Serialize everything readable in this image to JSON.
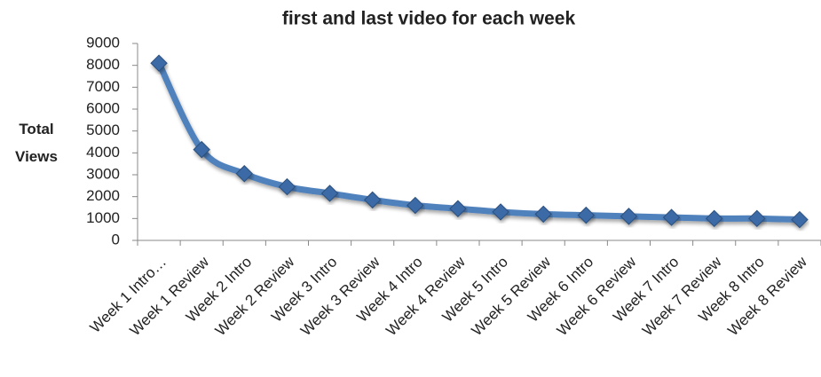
{
  "chart_data": {
    "type": "line",
    "title": "first and last video for each week",
    "y_label": "Total Views",
    "categories": [
      "Week 1 Intro…",
      "Week 1 Review",
      "Week 2 Intro",
      "Week 2 Review",
      "Week 3 Intro",
      "Week 3 Review",
      "Week 4 Intro",
      "Week 4 Review",
      "Week 5 Intro",
      "Week 5 Review",
      "Week 6 Intro",
      "Week 6 Review",
      "Week 7 Intro",
      "Week 7 Review",
      "Week 8 Intro",
      "Week 8 Review"
    ],
    "values": [
      8100,
      4150,
      3050,
      2450,
      2150,
      1850,
      1600,
      1450,
      1300,
      1200,
      1150,
      1100,
      1050,
      1000,
      1000,
      950
    ],
    "color": "#4f81bd",
    "marker_color": "#3b6aa6",
    "smooth": true,
    "ylim": [
      0,
      9000
    ],
    "yticks": [
      0,
      1000,
      2000,
      3000,
      4000,
      5000,
      6000,
      7000,
      8000,
      9000
    ],
    "grid": false
  }
}
